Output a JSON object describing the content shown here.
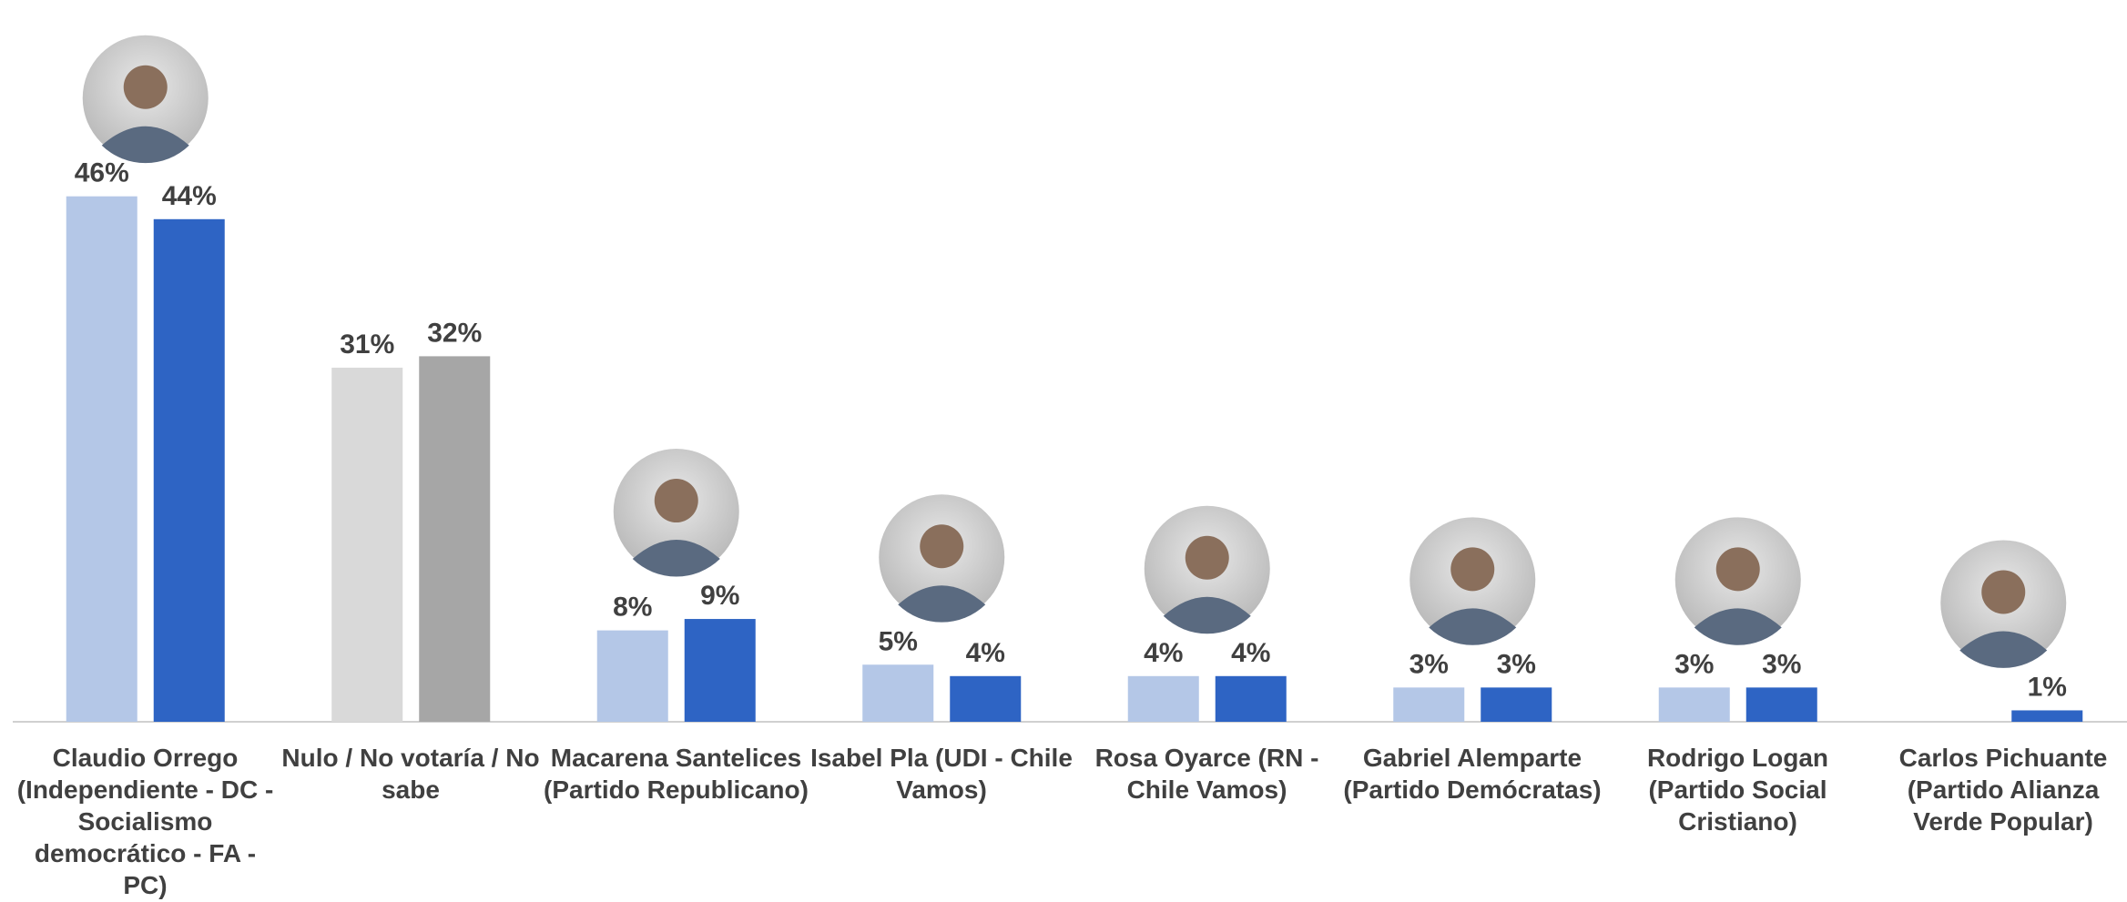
{
  "chart_data": {
    "type": "bar",
    "categories": [
      "Claudio Orrego (Independiente - DC - Socialismo democrático - FA - PC)",
      "Nulo / No votaría / No sabe",
      "Macarena Santelices (Partido Republicano)",
      "Isabel Pla (UDI - Chile Vamos)",
      "Rosa Oyarce (RN - Chile Vamos)",
      "Gabriel Alemparte (Partido Demócratas)",
      "Rodrigo Logan (Partido Social Cristiano)",
      "Carlos Pichuante (Partido Alianza Verde Popular)"
    ],
    "series": [
      {
        "colors": [
          "#b4c7e7",
          "#d9d9d9",
          "#b4c7e7",
          "#b4c7e7",
          "#b4c7e7",
          "#b4c7e7",
          "#b4c7e7",
          "#b4c7e7"
        ],
        "values": [
          46,
          31,
          8,
          5,
          4,
          3,
          3,
          null
        ],
        "value_labels": [
          "46%",
          "31%",
          "8%",
          "5%",
          "4%",
          "3%",
          "3%",
          null
        ]
      },
      {
        "colors": [
          "#2e64c4",
          "#a6a6a6",
          "#2e64c4",
          "#2e64c4",
          "#2e64c4",
          "#2e64c4",
          "#2e64c4",
          "#2e64c4"
        ],
        "values": [
          44,
          32,
          9,
          4,
          4,
          3,
          3,
          1
        ],
        "value_labels": [
          "44%",
          "32%",
          "9%",
          "4%",
          "4%",
          "3%",
          "3%",
          "1%"
        ]
      }
    ],
    "ylim": [
      0,
      60
    ]
  }
}
